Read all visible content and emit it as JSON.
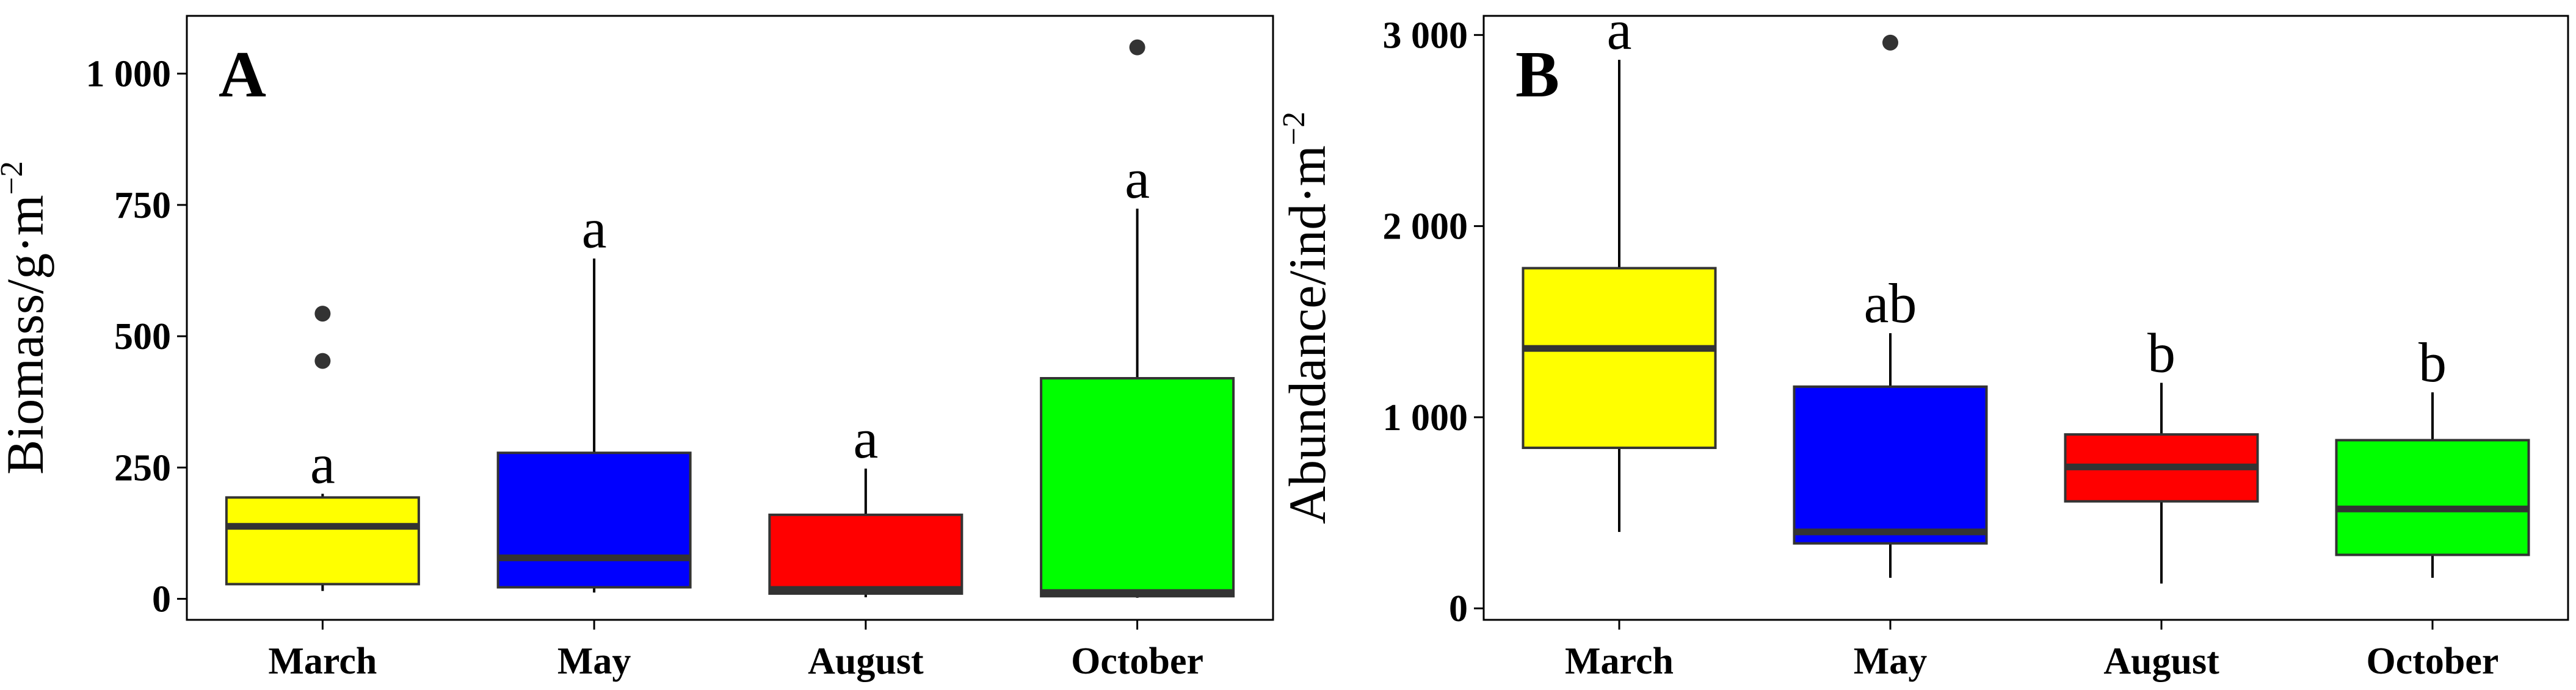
{
  "chart_data": [
    {
      "type": "box",
      "panel_label": "A",
      "ylabel": "Biomass/g·m",
      "ylabel_sup": "−2",
      "ylim": [
        -40,
        1110
      ],
      "yticks": [
        0,
        250,
        500,
        750,
        1000
      ],
      "ytick_labels": [
        "0",
        "250",
        "500",
        "750",
        "1 000"
      ],
      "categories": [
        "March",
        "May",
        "August",
        "October"
      ],
      "boxes": [
        {
          "category": "March",
          "whisker_low": 15,
          "q1": 28,
          "median": 138,
          "q3": 193,
          "whisker_high": 200,
          "outliers": [
            453,
            543
          ],
          "group": "a",
          "color": "#ffff00"
        },
        {
          "category": "May",
          "whisker_low": 12,
          "q1": 22,
          "median": 78,
          "q3": 278,
          "whisker_high": 648,
          "outliers": [],
          "group": "a",
          "color": "#0000ff"
        },
        {
          "category": "August",
          "whisker_low": 3,
          "q1": 10,
          "median": 18,
          "q3": 160,
          "whisker_high": 248,
          "outliers": [],
          "group": "a",
          "color": "#ff0000"
        },
        {
          "category": "October",
          "whisker_low": 2,
          "q1": 5,
          "median": 12,
          "q3": 420,
          "whisker_high": 743,
          "outliers": [
            1050
          ],
          "group": "a",
          "color": "#00ff00"
        }
      ]
    },
    {
      "type": "box",
      "panel_label": "B",
      "ylabel": "Abundance/ind·m",
      "ylabel_sup": "−2",
      "ylim": [
        -60,
        3100
      ],
      "yticks": [
        0,
        1000,
        2000,
        3000
      ],
      "ytick_labels": [
        "0",
        "1 000",
        "2 000",
        "3 000"
      ],
      "categories": [
        "March",
        "May",
        "August",
        "October"
      ],
      "boxes": [
        {
          "category": "March",
          "whisker_low": 400,
          "q1": 840,
          "median": 1360,
          "q3": 1780,
          "whisker_high": 2870,
          "outliers": [],
          "group": "a",
          "color": "#ffff00"
        },
        {
          "category": "May",
          "whisker_low": 160,
          "q1": 340,
          "median": 400,
          "q3": 1160,
          "whisker_high": 1440,
          "outliers": [
            2960
          ],
          "group": "ab",
          "color": "#0000ff"
        },
        {
          "category": "August",
          "whisker_low": 130,
          "q1": 560,
          "median": 740,
          "q3": 910,
          "whisker_high": 1180,
          "outliers": [],
          "group": "b",
          "color": "#ff0000"
        },
        {
          "category": "October",
          "whisker_low": 160,
          "q1": 280,
          "median": 520,
          "q3": 880,
          "whisker_high": 1130,
          "outliers": [],
          "group": "b",
          "color": "#00ff00"
        }
      ]
    }
  ]
}
